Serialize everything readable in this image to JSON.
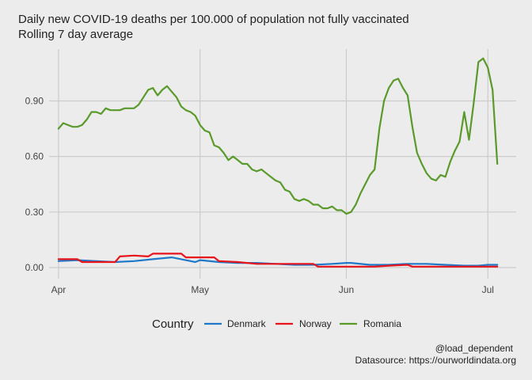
{
  "chart_data": {
    "type": "line",
    "title": "Daily new COVID-19 deaths per 100.000 of population not fully vaccinated",
    "subtitle": "Rolling 7 day average",
    "xlabel": "",
    "ylabel": "",
    "x_ticks": [
      {
        "label": "Apr",
        "day": 0
      },
      {
        "label": "May",
        "day": 30
      },
      {
        "label": "Jun",
        "day": 61
      },
      {
        "label": "Jul",
        "day": 91
      }
    ],
    "y_ticks": [
      0.0,
      0.3,
      0.6,
      0.9
    ],
    "y_tick_labels": [
      "0.00",
      "0.30",
      "0.60",
      "0.90"
    ],
    "xlim": [
      -2,
      97
    ],
    "ylim": [
      -0.06,
      1.18
    ],
    "grid": true,
    "legend": {
      "title": "Country",
      "position": "bottom"
    },
    "series": [
      {
        "name": "Denmark",
        "color": "#1f78c8",
        "x": [
          0,
          4,
          8,
          12,
          16,
          20,
          24,
          28,
          29,
          30,
          34,
          38,
          42,
          46,
          50,
          54,
          58,
          61,
          62,
          66,
          70,
          74,
          78,
          82,
          86,
          89,
          91,
          93
        ],
        "values": [
          0.035,
          0.04,
          0.035,
          0.03,
          0.035,
          0.045,
          0.055,
          0.035,
          0.03,
          0.04,
          0.03,
          0.025,
          0.025,
          0.02,
          0.015,
          0.015,
          0.02,
          0.025,
          0.025,
          0.015,
          0.015,
          0.02,
          0.02,
          0.015,
          0.01,
          0.01,
          0.015,
          0.015
        ]
      },
      {
        "name": "Norway",
        "color": "#e8141c",
        "x": [
          0,
          4,
          5,
          8,
          12,
          13,
          16,
          19,
          20,
          23,
          26,
          27,
          30,
          33,
          34,
          38,
          42,
          46,
          50,
          54,
          55,
          58,
          60,
          62,
          66,
          67,
          70,
          74,
          75,
          78,
          82,
          86,
          89,
          93
        ],
        "values": [
          0.045,
          0.045,
          0.03,
          0.03,
          0.03,
          0.06,
          0.065,
          0.06,
          0.075,
          0.075,
          0.075,
          0.055,
          0.055,
          0.055,
          0.035,
          0.03,
          0.02,
          0.02,
          0.02,
          0.02,
          0.005,
          0.005,
          0.005,
          0.005,
          0.005,
          0.005,
          0.01,
          0.015,
          0.005,
          0.005,
          0.005,
          0.005,
          0.005,
          0.005
        ]
      },
      {
        "name": "Romania",
        "color": "#5a9a2a",
        "x": [
          0,
          1,
          2,
          3,
          4,
          5,
          6,
          7,
          8,
          9,
          10,
          11,
          12,
          13,
          14,
          15,
          16,
          17,
          18,
          19,
          20,
          21,
          22,
          23,
          24,
          25,
          26,
          27,
          28,
          29,
          30,
          31,
          32,
          33,
          34,
          35,
          36,
          37,
          38,
          39,
          40,
          41,
          42,
          43,
          44,
          45,
          46,
          47,
          48,
          49,
          50,
          51,
          52,
          53,
          54,
          55,
          56,
          57,
          58,
          59,
          60,
          61,
          62,
          63,
          64,
          65,
          66,
          67,
          68,
          69,
          70,
          71,
          72,
          73,
          74,
          75,
          76,
          77,
          78,
          79,
          80,
          81,
          82,
          83,
          84,
          85,
          86,
          87,
          88,
          89,
          90,
          91,
          92,
          93
        ],
        "values": [
          0.75,
          0.78,
          0.77,
          0.76,
          0.76,
          0.77,
          0.8,
          0.84,
          0.84,
          0.83,
          0.86,
          0.85,
          0.85,
          0.85,
          0.86,
          0.86,
          0.86,
          0.88,
          0.92,
          0.96,
          0.97,
          0.93,
          0.96,
          0.98,
          0.95,
          0.92,
          0.87,
          0.85,
          0.84,
          0.82,
          0.77,
          0.74,
          0.73,
          0.66,
          0.65,
          0.62,
          0.58,
          0.6,
          0.58,
          0.56,
          0.56,
          0.53,
          0.52,
          0.53,
          0.51,
          0.49,
          0.47,
          0.46,
          0.42,
          0.41,
          0.37,
          0.36,
          0.37,
          0.36,
          0.34,
          0.34,
          0.32,
          0.32,
          0.33,
          0.31,
          0.31,
          0.29,
          0.3,
          0.34,
          0.4,
          0.45,
          0.5,
          0.53,
          0.75,
          0.9,
          0.97,
          1.01,
          1.02,
          0.97,
          0.93,
          0.76,
          0.62,
          0.56,
          0.51,
          0.48,
          0.47,
          0.5,
          0.49,
          0.57,
          0.63,
          0.68,
          0.84,
          0.69,
          0.89,
          1.11,
          1.13,
          1.08,
          0.96,
          0.56
        ]
      }
    ],
    "caption": [
      "@load_dependent",
      "Datasource: https://ourworldindata.org"
    ]
  },
  "colors": {
    "background": "#ececec",
    "gridline": "#cccccc"
  }
}
